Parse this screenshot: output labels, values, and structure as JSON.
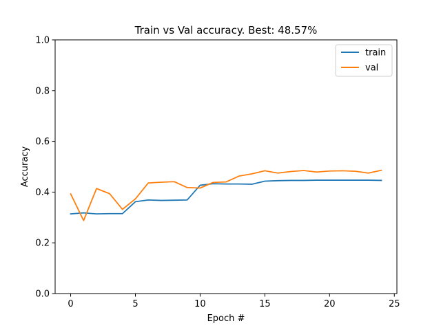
{
  "chart_data": {
    "type": "line",
    "title": "Train vs Val accuracy. Best: 48.57%",
    "xlabel": "Epoch #",
    "ylabel": "Accuracy",
    "xlim": [
      -1.2,
      25.2
    ],
    "ylim": [
      0.0,
      1.0
    ],
    "xticks": [
      0,
      5,
      10,
      15,
      20,
      25
    ],
    "yticks": [
      0.0,
      0.2,
      0.4,
      0.6,
      0.8,
      1.0
    ],
    "xtick_labels": [
      "0",
      "5",
      "10",
      "15",
      "20",
      "25"
    ],
    "ytick_labels": [
      "0.0",
      "0.2",
      "0.4",
      "0.6",
      "0.8",
      "1.0"
    ],
    "grid": false,
    "legend_position": "top-right",
    "x": [
      0,
      1,
      2,
      3,
      4,
      5,
      6,
      7,
      8,
      9,
      10,
      11,
      12,
      13,
      14,
      15,
      16,
      17,
      18,
      19,
      20,
      21,
      22,
      23,
      24
    ],
    "series": [
      {
        "name": "train",
        "color": "#1f77b4",
        "values": [
          0.314,
          0.318,
          0.314,
          0.315,
          0.315,
          0.362,
          0.369,
          0.367,
          0.368,
          0.369,
          0.427,
          0.433,
          0.432,
          0.432,
          0.431,
          0.443,
          0.445,
          0.446,
          0.446,
          0.447,
          0.447,
          0.447,
          0.447,
          0.447,
          0.446
        ]
      },
      {
        "name": "val",
        "color": "#ff7f0e",
        "values": [
          0.393,
          0.288,
          0.414,
          0.394,
          0.332,
          0.373,
          0.436,
          0.439,
          0.441,
          0.418,
          0.416,
          0.438,
          0.44,
          0.463,
          0.472,
          0.484,
          0.475,
          0.481,
          0.485,
          0.479,
          0.483,
          0.484,
          0.482,
          0.475,
          0.486
        ]
      }
    ]
  }
}
